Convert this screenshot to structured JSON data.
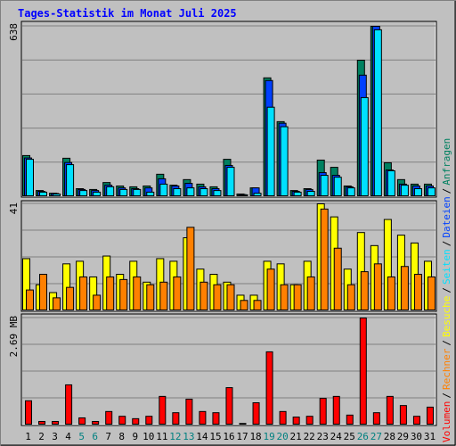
{
  "title": "Tages-Statistik im Monat Juli 2025",
  "legend_separator": "/",
  "chart_data": [
    {
      "type": "bar",
      "ylim": [
        0,
        638
      ],
      "yticks": [
        638
      ],
      "grid": true,
      "grid_divisions": 5,
      "series": [
        {
          "name": "Anfragen",
          "color": "#008060",
          "values": [
            154,
            23,
            13,
            144,
            30,
            27,
            53,
            40,
            37,
            40,
            84,
            43,
            64,
            47,
            37,
            140,
            10,
            33,
            445,
            281,
            23,
            30,
            137,
            110,
            40,
            511,
            638,
            127,
            64,
            47,
            47
          ]
        },
        {
          "name": "Dateien",
          "color": "#0040ff",
          "values": [
            145,
            20,
            12,
            128,
            27,
            23,
            43,
            33,
            30,
            33,
            67,
            40,
            50,
            37,
            30,
            117,
            8,
            33,
            435,
            275,
            20,
            27,
            90,
            80,
            37,
            455,
            638,
            100,
            47,
            40,
            40
          ]
        },
        {
          "name": "Seiten",
          "color": "#00e0ff",
          "values": [
            140,
            17,
            10,
            120,
            23,
            17,
            37,
            27,
            27,
            17,
            47,
            30,
            33,
            30,
            23,
            110,
            7,
            13,
            335,
            262,
            17,
            20,
            80,
            73,
            33,
            371,
            625,
            97,
            43,
            30,
            33
          ]
        }
      ]
    },
    {
      "type": "bar",
      "ylim": [
        0,
        41
      ],
      "yticks": [
        41
      ],
      "grid": true,
      "grid_divisions": 4,
      "series": [
        {
          "name": "Besuche",
          "color": "#ffff00",
          "values": [
            20,
            10,
            7,
            18,
            19,
            13,
            21,
            14,
            19,
            11,
            20,
            19,
            28,
            16,
            14,
            11,
            6,
            6,
            19,
            18,
            10,
            19,
            41,
            36,
            16,
            30,
            25,
            35,
            29,
            26,
            19
          ]
        },
        {
          "name": "Rechner",
          "color": "#ff8000",
          "values": [
            8,
            14,
            5,
            9,
            13,
            6,
            13,
            12,
            13,
            10,
            11,
            13,
            32,
            11,
            10,
            10,
            4,
            4,
            16,
            10,
            10,
            13,
            39,
            24,
            10,
            15,
            18,
            13,
            17,
            14,
            13
          ]
        }
      ]
    },
    {
      "type": "bar",
      "ylim": [
        0,
        2.69
      ],
      "yticks": [
        {
          "value": 2.69,
          "label": "2.69 MB"
        }
      ],
      "grid": true,
      "grid_divisions": 4,
      "categories": [
        "1",
        "2",
        "3",
        "4",
        "5",
        "6",
        "7",
        "8",
        "9",
        "10",
        "11",
        "12",
        "13",
        "14",
        "15",
        "16",
        "17",
        "18",
        "19",
        "20",
        "21",
        "22",
        "23",
        "24",
        "25",
        "26",
        "27",
        "28",
        "29",
        "30",
        "31"
      ],
      "category_colors": [
        "#000000",
        "#000000",
        "#000000",
        "#000000",
        "#008080",
        "#008080",
        "#000000",
        "#000000",
        "#000000",
        "#000000",
        "#000000",
        "#008080",
        "#008080",
        "#000000",
        "#000000",
        "#000000",
        "#000000",
        "#000000",
        "#008080",
        "#008080",
        "#000000",
        "#000000",
        "#000000",
        "#000000",
        "#000000",
        "#008080",
        "#008080",
        "#000000",
        "#000000",
        "#000000",
        "#000000"
      ],
      "series": [
        {
          "name": "Volumen",
          "color": "#ff0000",
          "values": [
            0.61,
            0.09,
            0.09,
            1.01,
            0.18,
            0.09,
            0.34,
            0.22,
            0.16,
            0.22,
            0.72,
            0.31,
            0.65,
            0.34,
            0.31,
            0.94,
            0.04,
            0.56,
            1.84,
            0.34,
            0.2,
            0.22,
            0.67,
            0.72,
            0.25,
            2.69,
            0.31,
            0.72,
            0.49,
            0.22,
            0.45
          ]
        }
      ]
    }
  ]
}
